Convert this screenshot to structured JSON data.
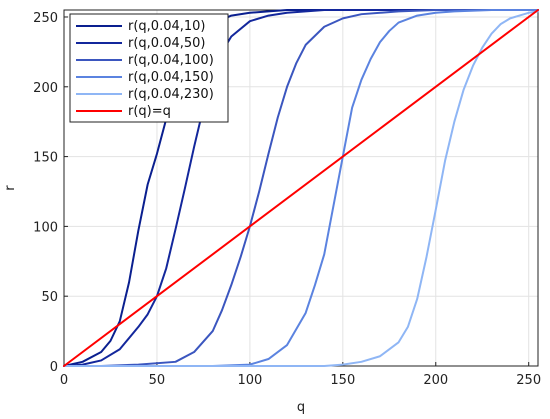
{
  "chart_data": {
    "type": "line",
    "xlabel": "q",
    "ylabel": "r",
    "xlim": [
      0,
      255
    ],
    "ylim": [
      0,
      255
    ],
    "x_ticks": [
      0,
      50,
      100,
      150,
      200,
      250
    ],
    "y_ticks": [
      0,
      50,
      100,
      150,
      200,
      250
    ],
    "grid": true,
    "legend_position": "top-left",
    "series": [
      {
        "name": "r(q,0.04,10)",
        "color": "#0a1f8f",
        "x": [
          0,
          10,
          20,
          25,
          30,
          35,
          40,
          45,
          50,
          55,
          60,
          65,
          70,
          75,
          80,
          90,
          100,
          110,
          120,
          140,
          160,
          200,
          255
        ],
        "y": [
          0,
          3,
          10,
          18,
          32,
          60,
          97,
          130,
          152,
          177,
          200,
          219,
          232,
          240,
          245,
          251,
          253,
          254,
          255,
          255,
          255,
          255,
          255
        ]
      },
      {
        "name": "r(q,0.04,50)",
        "color": "#13279c",
        "x": [
          0,
          10,
          20,
          30,
          40,
          45,
          50,
          55,
          60,
          65,
          70,
          75,
          80,
          85,
          90,
          100,
          110,
          120,
          130,
          140,
          160,
          200,
          255
        ],
        "y": [
          0,
          1,
          4,
          12,
          28,
          37,
          50,
          70,
          98,
          127,
          157,
          185,
          210,
          225,
          236,
          247,
          251,
          253,
          254,
          255,
          255,
          255,
          255
        ]
      },
      {
        "name": "r(q,0.04,100)",
        "color": "#3b56bf",
        "x": [
          0,
          20,
          40,
          60,
          70,
          80,
          85,
          90,
          95,
          100,
          105,
          110,
          115,
          120,
          125,
          130,
          140,
          150,
          160,
          180,
          200,
          255
        ],
        "y": [
          0,
          0,
          1,
          3,
          10,
          25,
          40,
          58,
          78,
          100,
          125,
          152,
          178,
          200,
          217,
          230,
          243,
          249,
          252,
          254,
          255,
          255
        ]
      },
      {
        "name": "r(q,0.04,150)",
        "color": "#5b83e0",
        "x": [
          0,
          50,
          80,
          100,
          110,
          120,
          130,
          135,
          140,
          145,
          150,
          155,
          160,
          165,
          170,
          175,
          180,
          190,
          200,
          210,
          230,
          255
        ],
        "y": [
          0,
          0,
          0,
          1,
          5,
          15,
          38,
          58,
          80,
          115,
          150,
          185,
          205,
          220,
          232,
          240,
          246,
          251,
          253,
          254,
          255,
          255
        ]
      },
      {
        "name": "r(q,0.04,230)",
        "color": "#8fb6f5",
        "x": [
          0,
          100,
          140,
          150,
          160,
          170,
          180,
          185,
          190,
          195,
          200,
          205,
          210,
          215,
          220,
          225,
          230,
          235,
          240,
          245,
          250,
          255
        ],
        "y": [
          0,
          0,
          0,
          1,
          3,
          7,
          17,
          28,
          48,
          78,
          112,
          147,
          175,
          198,
          215,
          228,
          238,
          245,
          249,
          251,
          253,
          254
        ]
      },
      {
        "name": "r(q)=q",
        "color": "#ff0000",
        "x": [
          0,
          255
        ],
        "y": [
          0,
          255
        ]
      }
    ]
  }
}
